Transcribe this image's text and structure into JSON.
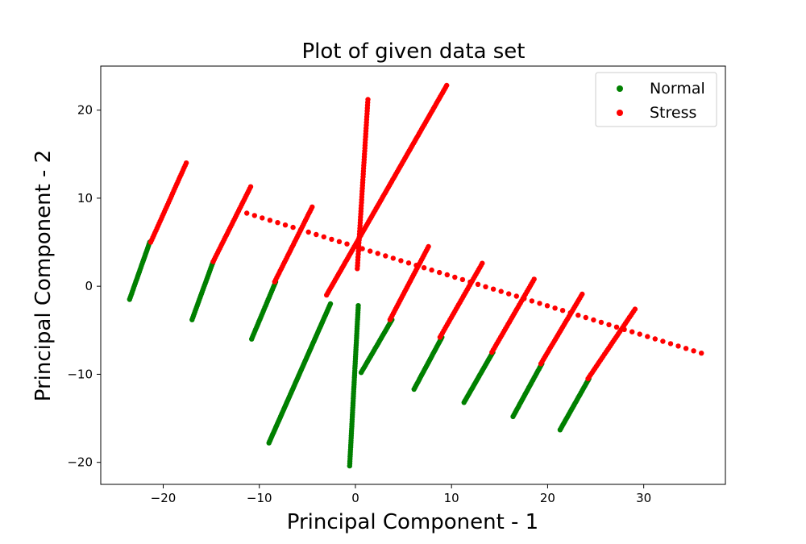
{
  "chart_data": {
    "type": "scatter",
    "title": "Plot of given data set",
    "xlabel": "Principal Component - 1",
    "ylabel": "Principal Component - 2",
    "xlim": [
      -26.5,
      38.5
    ],
    "ylim": [
      -22.5,
      25
    ],
    "xticks": [
      -20,
      -10,
      0,
      10,
      20,
      30
    ],
    "yticks": [
      -20,
      -10,
      0,
      10,
      20
    ],
    "xtick_labels": [
      "−20",
      "−10",
      "0",
      "10",
      "20",
      "30"
    ],
    "ytick_labels": [
      "−20",
      "−10",
      "0",
      "10",
      "20"
    ],
    "grid": false,
    "legend_position": "top-right",
    "series": [
      {
        "name": "Normal",
        "color": "#008000",
        "segments": [
          {
            "from": [
              -23.5,
              -1.5
            ],
            "to": [
              -21.4,
              5.0
            ],
            "count": 30
          },
          {
            "from": [
              -17.0,
              -3.8
            ],
            "to": [
              -14.8,
              2.8
            ],
            "count": 30
          },
          {
            "from": [
              -10.8,
              -6.0
            ],
            "to": [
              -8.3,
              0.5
            ],
            "count": 30
          },
          {
            "from": [
              -9.0,
              -17.8
            ],
            "to": [
              -2.6,
              -2.0
            ],
            "count": 90
          },
          {
            "from": [
              -0.6,
              -20.4
            ],
            "to": [
              0.3,
              -2.2
            ],
            "count": 70
          },
          {
            "from": [
              0.6,
              -9.8
            ],
            "to": [
              3.8,
              -3.8
            ],
            "count": 30
          },
          {
            "from": [
              6.1,
              -11.7
            ],
            "to": [
              9.0,
              -5.8
            ],
            "count": 30
          },
          {
            "from": [
              11.3,
              -13.2
            ],
            "to": [
              14.3,
              -7.5
            ],
            "count": 30
          },
          {
            "from": [
              16.4,
              -14.8
            ],
            "to": [
              19.4,
              -8.8
            ],
            "count": 30
          },
          {
            "from": [
              21.3,
              -16.3
            ],
            "to": [
              24.3,
              -10.5
            ],
            "count": 30
          }
        ]
      },
      {
        "name": "Stress",
        "color": "#ff0000",
        "segments": [
          {
            "from": [
              -21.3,
              5.0
            ],
            "to": [
              -17.6,
              14.0
            ],
            "count": 35
          },
          {
            "from": [
              -14.8,
              2.8
            ],
            "to": [
              -10.9,
              11.3
            ],
            "count": 35
          },
          {
            "from": [
              -8.4,
              0.5
            ],
            "to": [
              -4.5,
              9.0
            ],
            "count": 35
          },
          {
            "from": [
              -3.0,
              -1.0
            ],
            "to": [
              9.5,
              22.8
            ],
            "count": 110
          },
          {
            "from": [
              0.2,
              2.0
            ],
            "to": [
              1.3,
              21.2
            ],
            "count": 60
          },
          {
            "from": [
              -11.3,
              8.3
            ],
            "to": [
              36.0,
              -7.6
            ],
            "count": 60
          },
          {
            "from": [
              3.6,
              -3.8
            ],
            "to": [
              7.6,
              4.5
            ],
            "count": 35
          },
          {
            "from": [
              8.8,
              -5.8
            ],
            "to": [
              13.2,
              2.6
            ],
            "count": 35
          },
          {
            "from": [
              14.2,
              -7.5
            ],
            "to": [
              18.6,
              0.8
            ],
            "count": 35
          },
          {
            "from": [
              19.3,
              -8.8
            ],
            "to": [
              23.6,
              -0.9
            ],
            "count": 35
          },
          {
            "from": [
              24.2,
              -10.5
            ],
            "to": [
              29.1,
              -2.6
            ],
            "count": 35
          }
        ]
      }
    ]
  }
}
